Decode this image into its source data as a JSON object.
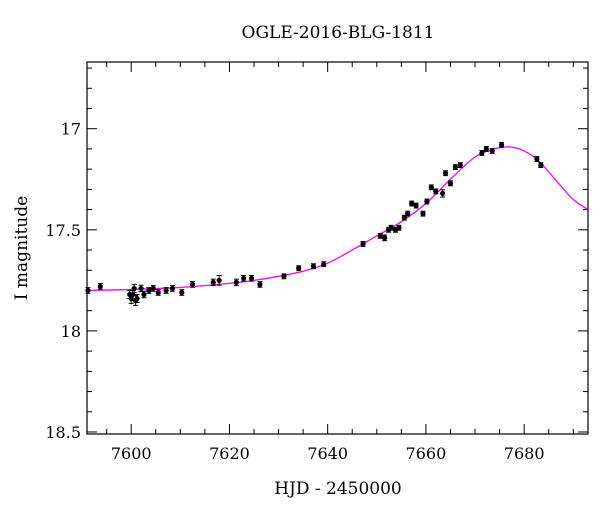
{
  "chart_data": {
    "type": "scatter",
    "title": "OGLE-2016-BLG-1811",
    "xlabel": "HJD - 2450000",
    "ylabel": "I magnitude",
    "xlim": [
      7591,
      7693
    ],
    "ylim": [
      18.51,
      16.67
    ],
    "y_inverted": true,
    "x_ticks": [
      7600,
      7620,
      7640,
      7660,
      7680
    ],
    "x_tick_labels": [
      "7600",
      "7620",
      "7640",
      "7660",
      "7680"
    ],
    "y_ticks": [
      17,
      17.5,
      18,
      18.5
    ],
    "y_tick_labels": [
      "17",
      "17.5",
      "18",
      "18.5"
    ],
    "grid": false,
    "series": [
      {
        "kind": "points",
        "color": "#000000",
        "x": [
          7591.2,
          7593.7,
          7599.7,
          7600.0,
          7600.3,
          7600.6,
          7600.9,
          7601.2,
          7602.0,
          7602.6,
          7603.6,
          7604.5,
          7605.5,
          7607.1,
          7608.4,
          7610.3,
          7612.5,
          7616.7,
          7617.9,
          7621.4,
          7622.9,
          7624.5,
          7626.2,
          7631.1,
          7634.1,
          7637.1,
          7639.2,
          7647.2,
          7650.7,
          7651.6,
          7652.4,
          7652.9,
          7653.8,
          7654.5,
          7655.6,
          7656.3,
          7657.1,
          7658.0,
          7659.4,
          7660.2,
          7661.1,
          7662.0,
          7663.4,
          7664.0,
          7665.0,
          7666.0,
          7667.0,
          7671.4,
          7672.3,
          7673.5,
          7675.4,
          7682.6,
          7683.4
        ],
        "y": [
          17.8,
          17.78,
          17.82,
          17.84,
          17.82,
          17.79,
          17.85,
          17.84,
          17.79,
          17.82,
          17.8,
          17.79,
          17.81,
          17.8,
          17.79,
          17.81,
          17.77,
          17.76,
          17.75,
          17.76,
          17.74,
          17.74,
          17.77,
          17.73,
          17.69,
          17.68,
          17.67,
          17.57,
          17.53,
          17.54,
          17.5,
          17.49,
          17.5,
          17.49,
          17.44,
          17.42,
          17.37,
          17.38,
          17.42,
          17.36,
          17.29,
          17.31,
          17.32,
          17.22,
          17.27,
          17.19,
          17.18,
          17.12,
          17.1,
          17.11,
          17.08,
          17.15,
          17.18
        ],
        "yerr": [
          0.014,
          0.014,
          0.02,
          0.024,
          0.02,
          0.02,
          0.024,
          0.02,
          0.016,
          0.016,
          0.014,
          0.014,
          0.014,
          0.014,
          0.014,
          0.014,
          0.014,
          0.016,
          0.024,
          0.016,
          0.014,
          0.014,
          0.014,
          0.012,
          0.012,
          0.012,
          0.012,
          0.012,
          0.012,
          0.014,
          0.012,
          0.012,
          0.012,
          0.012,
          0.012,
          0.012,
          0.012,
          0.012,
          0.012,
          0.012,
          0.012,
          0.012,
          0.018,
          0.012,
          0.012,
          0.012,
          0.012,
          0.012,
          0.012,
          0.012,
          0.012,
          0.012,
          0.012
        ]
      },
      {
        "kind": "model-curve",
        "color": "#ff00ff",
        "x": [
          7591,
          7600,
          7610,
          7620,
          7625,
          7630,
          7635,
          7640,
          7645,
          7650,
          7655,
          7660,
          7665,
          7670,
          7674,
          7677,
          7680,
          7683,
          7687,
          7690,
          7693
        ],
        "y": [
          17.8,
          17.795,
          17.785,
          17.765,
          17.75,
          17.73,
          17.705,
          17.665,
          17.6,
          17.53,
          17.46,
          17.37,
          17.25,
          17.14,
          17.1,
          17.09,
          17.11,
          17.16,
          17.27,
          17.35,
          17.4
        ]
      }
    ]
  }
}
